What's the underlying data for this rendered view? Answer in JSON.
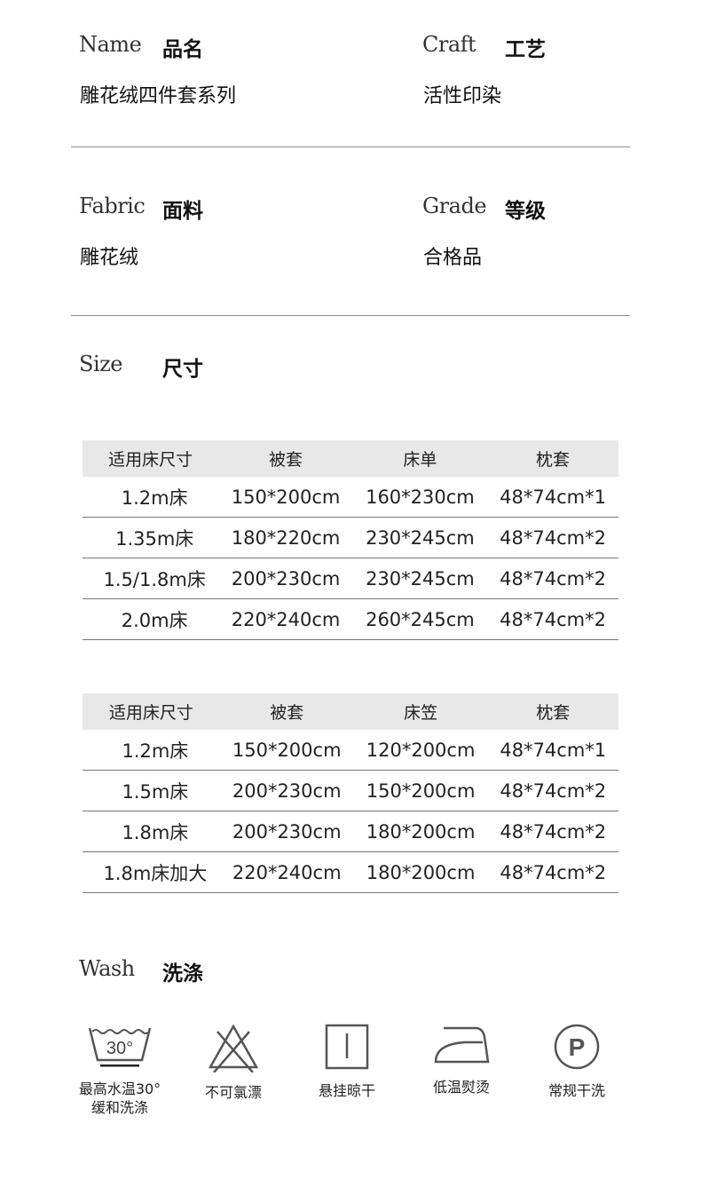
{
  "specs": [
    {
      "en": "Name",
      "cn": "品名",
      "value": "雕花绒四件套系列"
    },
    {
      "en": "Craft",
      "cn": "工艺",
      "value": "活性印染"
    },
    {
      "en": "Fabric",
      "cn": "面料",
      "value": "雕花绒"
    },
    {
      "en": "Grade",
      "cn": "等级",
      "value": "合格品"
    }
  ],
  "size": {
    "en": "Size",
    "cn": "尺寸"
  },
  "table1": {
    "headers": [
      "适用床尺寸",
      "被套",
      "床单",
      "枕套"
    ],
    "rows": [
      [
        "1.2m床",
        "150*200cm",
        "160*230cm",
        "48*74cm*1"
      ],
      [
        "1.35m床",
        "180*220cm",
        "230*245cm",
        "48*74cm*2"
      ],
      [
        "1.5/1.8m床",
        "200*230cm",
        "230*245cm",
        "48*74cm*2"
      ],
      [
        "2.0m床",
        "220*240cm",
        "260*245cm",
        "48*74cm*2"
      ]
    ]
  },
  "table2": {
    "headers": [
      "适用床尺寸",
      "被套",
      "床笠",
      "枕套"
    ],
    "rows": [
      [
        "1.2m床",
        "150*200cm",
        "120*200cm",
        "48*74cm*1"
      ],
      [
        "1.5m床",
        "200*230cm",
        "150*200cm",
        "48*74cm*2"
      ],
      [
        "1.8m床",
        "200*230cm",
        "180*200cm",
        "48*74cm*2"
      ],
      [
        "1.8m床加大",
        "220*240cm",
        "180*200cm",
        "48*74cm*2"
      ]
    ]
  },
  "wash": {
    "en": "Wash",
    "cn": "洗涤",
    "items": [
      {
        "icon": "wash-30-icon",
        "line1": "最高水温30°",
        "line2": "缓和洗涤",
        "temp": "30°"
      },
      {
        "icon": "no-bleach-icon",
        "line1": "不可氯漂"
      },
      {
        "icon": "hang-dry-icon",
        "line1": "悬挂晾干"
      },
      {
        "icon": "low-iron-icon",
        "line1": "低温熨烫"
      },
      {
        "icon": "dry-clean-icon",
        "line1": "常规干洗",
        "letter": "P"
      }
    ]
  }
}
